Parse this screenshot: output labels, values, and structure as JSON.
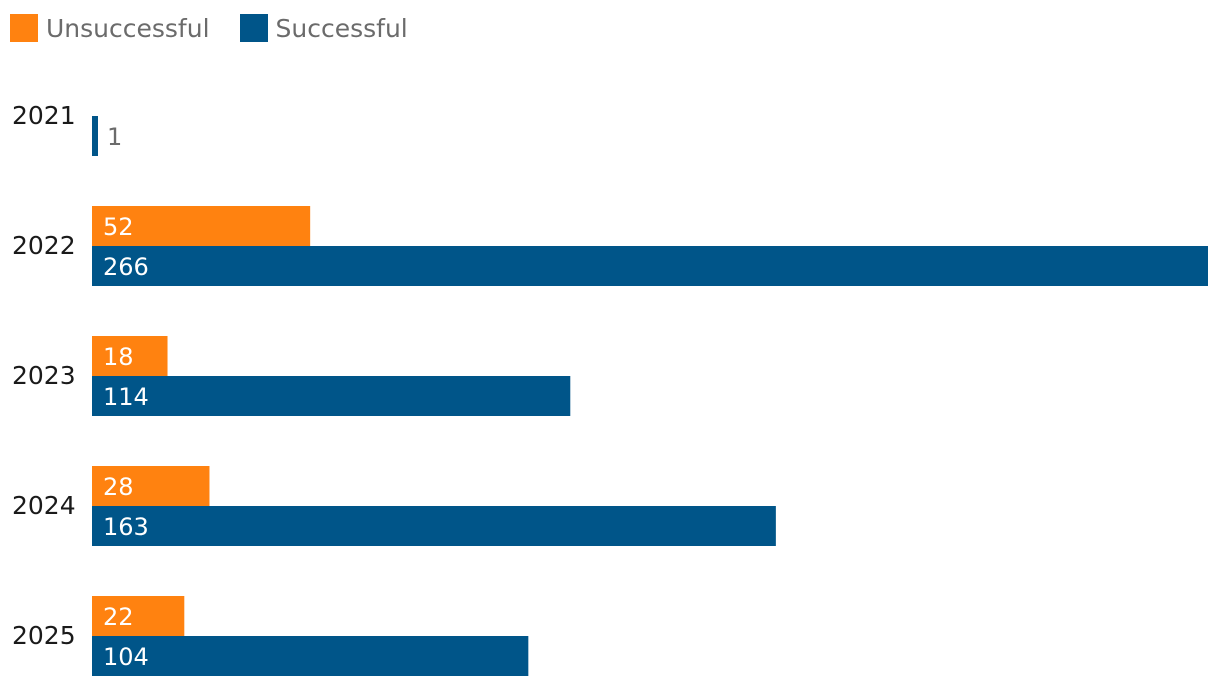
{
  "chart_data": {
    "type": "bar",
    "orientation": "horizontal",
    "categories": [
      "2021",
      "2022",
      "2023",
      "2024",
      "2025"
    ],
    "series": [
      {
        "name": "Unsuccessful",
        "color": "#ff8210",
        "values": [
          null,
          52,
          18,
          28,
          22
        ]
      },
      {
        "name": "Successful",
        "color": "#005589",
        "values": [
          1,
          266,
          114,
          163,
          104
        ]
      }
    ],
    "xlim": [
      0,
      266
    ],
    "grid": false,
    "legend": "top-left",
    "title": "",
    "xlabel": "",
    "ylabel": ""
  }
}
